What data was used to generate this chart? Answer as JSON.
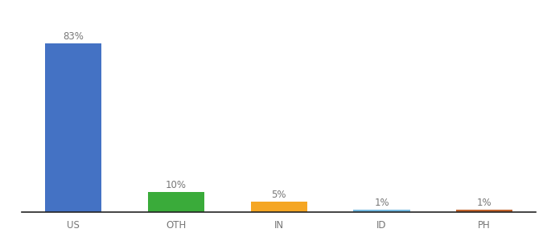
{
  "categories": [
    "US",
    "OTH",
    "IN",
    "ID",
    "PH"
  ],
  "values": [
    83,
    10,
    5,
    1,
    1
  ],
  "bar_colors": [
    "#4472c4",
    "#3aab3a",
    "#f5a623",
    "#74b9e0",
    "#c0622b"
  ],
  "labels": [
    "83%",
    "10%",
    "5%",
    "1%",
    "1%"
  ],
  "ylim": [
    0,
    95
  ],
  "background_color": "#ffffff",
  "label_fontsize": 8.5,
  "tick_fontsize": 8.5,
  "bar_width": 0.55
}
